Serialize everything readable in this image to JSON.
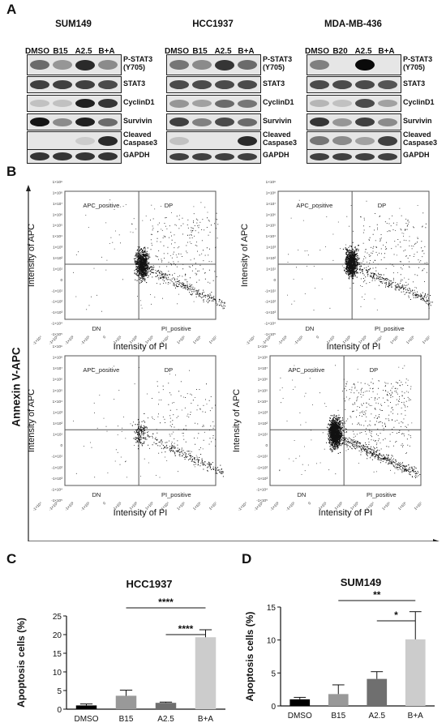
{
  "panel_letters": {
    "a": "A",
    "b": "B",
    "c": "C",
    "d": "D"
  },
  "western_blot": {
    "cell_lines": [
      {
        "name": "SUM149",
        "lanes": [
          "DMSO",
          "B15",
          "A2.5",
          "B+A"
        ]
      },
      {
        "name": "HCC1937",
        "lanes": [
          "DMSO",
          "B15",
          "A2.5",
          "B+A"
        ]
      },
      {
        "name": "MDA-MB-436",
        "lanes": [
          "DMSO",
          "B20",
          "A2.5",
          "B+A"
        ]
      }
    ],
    "rows": [
      {
        "label": "P-STAT3",
        "label2": "(Y705)"
      },
      {
        "label": "STAT3",
        "label2": ""
      },
      {
        "label": "CyclinD1",
        "label2": ""
      },
      {
        "label": "Survivin",
        "label2": ""
      },
      {
        "label": "Cleaved",
        "label2": "Caspase3"
      },
      {
        "label": "GAPDH",
        "label2": ""
      }
    ],
    "intensity": [
      [
        [
          0.55,
          0.35,
          0.85,
          0.4
        ],
        [
          0.75,
          0.75,
          0.75,
          0.7
        ],
        [
          0.15,
          0.15,
          0.9,
          0.8
        ],
        [
          0.95,
          0.4,
          0.9,
          0.55
        ],
        [
          0.0,
          0.0,
          0.1,
          0.85
        ],
        [
          0.8,
          0.8,
          0.8,
          0.8
        ]
      ],
      [
        [
          0.5,
          0.4,
          0.8,
          0.55
        ],
        [
          0.7,
          0.7,
          0.7,
          0.7
        ],
        [
          0.35,
          0.3,
          0.55,
          0.5
        ],
        [
          0.75,
          0.45,
          0.7,
          0.55
        ],
        [
          0.15,
          0.0,
          0.0,
          0.85
        ],
        [
          0.75,
          0.75,
          0.75,
          0.75
        ]
      ],
      [
        [
          0.45,
          0.0,
          1.0,
          0.0
        ],
        [
          0.7,
          0.7,
          0.7,
          0.65
        ],
        [
          0.2,
          0.15,
          0.7,
          0.3
        ],
        [
          0.8,
          0.35,
          0.75,
          0.4
        ],
        [
          0.5,
          0.4,
          0.3,
          0.75
        ],
        [
          0.75,
          0.75,
          0.75,
          0.75
        ]
      ]
    ]
  },
  "flow": {
    "y_axis_label": "Annexin V-APC",
    "plot_xlabel": "Intensity of PI",
    "plot_ylabel": "Intensity of APC",
    "quadrants": {
      "ul": "APC_positive",
      "ur": "DP",
      "ll": "DN",
      "lr": "PI_positive"
    },
    "y_ticks": [
      "1×10⁹",
      "1×10⁸",
      "1×10⁷",
      "1×10⁶",
      "1×10⁵",
      "1×10⁴",
      "1×10³",
      "1×10²",
      "1×10¹",
      "0",
      "-1×10¹",
      "-1×10²",
      "-1×10³",
      "-1×10⁴",
      "-1×10⁵"
    ],
    "x_ticks": [
      "-1×10⁴",
      "-1×10³",
      "-1×10²",
      "-1×10¹",
      "0",
      "1×10¹",
      "1×10²",
      "1×10³",
      "1×10⁴",
      "1×10⁵",
      "1×10⁶",
      "1×10⁷"
    ]
  },
  "chart_data": [
    {
      "type": "bar",
      "title": "HCC1937",
      "xlabel": "",
      "ylabel": "Apoptosis cells (%)",
      "categories": [
        "DMSO",
        "B15",
        "A2.5",
        "B+A"
      ],
      "values": [
        1.0,
        3.6,
        1.7,
        19.3
      ],
      "errors": [
        0.4,
        1.5,
        0.2,
        2.0
      ],
      "colors": [
        "#000000",
        "#999999",
        "#6f6f6f",
        "#cccccc"
      ],
      "ylim": [
        0,
        25
      ],
      "yticks": [
        0,
        5,
        10,
        15,
        20,
        25
      ],
      "significance": [
        {
          "from": 1,
          "to": 3,
          "label": "****"
        },
        {
          "from": 2,
          "to": 3,
          "label": "****"
        }
      ]
    },
    {
      "type": "bar",
      "title": "SUM149",
      "xlabel": "",
      "ylabel": "Apoptosis cells (%)",
      "categories": [
        "DMSO",
        "B15",
        "A2.5",
        "B+A"
      ],
      "values": [
        1.0,
        1.8,
        4.1,
        10.1
      ],
      "errors": [
        0.3,
        1.4,
        1.1,
        4.2
      ],
      "colors": [
        "#000000",
        "#999999",
        "#6f6f6f",
        "#cccccc"
      ],
      "ylim": [
        0,
        15
      ],
      "yticks": [
        0,
        5,
        10,
        15
      ],
      "significance": [
        {
          "from": 1,
          "to": 3,
          "label": "**"
        },
        {
          "from": 2,
          "to": 3,
          "label": "*"
        }
      ]
    }
  ]
}
